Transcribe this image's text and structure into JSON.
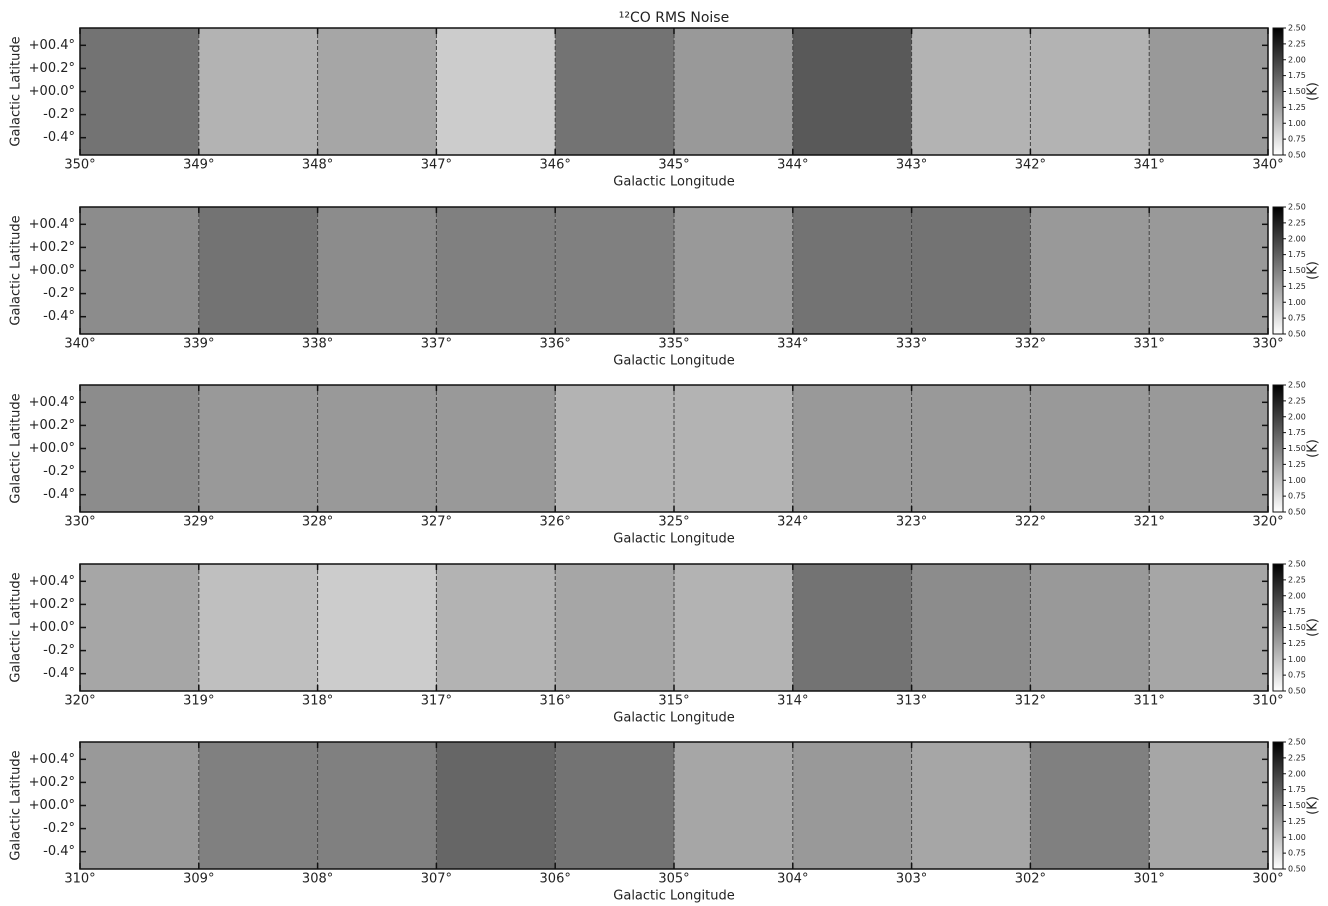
{
  "chart_data": [
    {
      "type": "heatmap",
      "title": "¹²CO RMS Noise",
      "xlabel": "Galactic Longitude",
      "ylabel": "Galactic Latitude",
      "colorbar_label": "(K)",
      "cmap": "gray_r",
      "xlim": [
        350,
        340
      ],
      "ylim": [
        -0.55,
        0.55
      ],
      "clim": [
        0.5,
        2.5
      ],
      "x": [
        349.5,
        348.5,
        347.5,
        346.5,
        345.5,
        344.5,
        343.5,
        342.5,
        341.5,
        340.5
      ],
      "values": [
        1.6,
        1.1,
        1.2,
        0.9,
        1.6,
        1.3,
        1.8,
        1.1,
        1.1,
        1.3
      ],
      "xticks": [
        {
          "value": 350,
          "label": "350°"
        },
        {
          "value": 349,
          "label": "349°"
        },
        {
          "value": 348,
          "label": "348°"
        },
        {
          "value": 347,
          "label": "347°"
        },
        {
          "value": 346,
          "label": "346°"
        },
        {
          "value": 345,
          "label": "345°"
        },
        {
          "value": 344,
          "label": "344°"
        },
        {
          "value": 343,
          "label": "343°"
        },
        {
          "value": 342,
          "label": "342°"
        },
        {
          "value": 341,
          "label": "341°"
        },
        {
          "value": 340,
          "label": "340°"
        }
      ],
      "yticks": [
        {
          "value": 0.4,
          "label": "+00.4°"
        },
        {
          "value": 0.2,
          "label": "+00.2°"
        },
        {
          "value": 0,
          "label": "+00.0°"
        },
        {
          "value": -0.2,
          "label": "-0.2°"
        },
        {
          "value": -0.4,
          "label": "-0.4°"
        }
      ],
      "cticks": [
        {
          "value": 0.5,
          "label": "0.50"
        },
        {
          "value": 0.75,
          "label": "0.75"
        },
        {
          "value": 1,
          "label": "1.00"
        },
        {
          "value": 1.25,
          "label": "1.25"
        },
        {
          "value": 1.5,
          "label": "1.50"
        },
        {
          "value": 1.75,
          "label": "1.75"
        },
        {
          "value": 2,
          "label": "2.00"
        },
        {
          "value": 2.25,
          "label": "2.25"
        },
        {
          "value": 2.5,
          "label": "2.50"
        }
      ]
    },
    {
      "type": "heatmap",
      "xlabel": "Galactic Longitude",
      "ylabel": "Galactic Latitude",
      "colorbar_label": "(K)",
      "cmap": "gray_r",
      "xlim": [
        340,
        330
      ],
      "ylim": [
        -0.55,
        0.55
      ],
      "clim": [
        0.5,
        2.5
      ],
      "x": [
        339.5,
        338.5,
        337.5,
        336.5,
        335.5,
        334.5,
        333.5,
        332.5,
        331.5,
        330.5
      ],
      "values": [
        1.4,
        1.6,
        1.4,
        1.5,
        1.5,
        1.3,
        1.6,
        1.6,
        1.3,
        1.3
      ],
      "xticks": [
        {
          "value": 340,
          "label": "340°"
        },
        {
          "value": 339,
          "label": "339°"
        },
        {
          "value": 338,
          "label": "338°"
        },
        {
          "value": 337,
          "label": "337°"
        },
        {
          "value": 336,
          "label": "336°"
        },
        {
          "value": 335,
          "label": "335°"
        },
        {
          "value": 334,
          "label": "334°"
        },
        {
          "value": 333,
          "label": "333°"
        },
        {
          "value": 332,
          "label": "332°"
        },
        {
          "value": 331,
          "label": "331°"
        },
        {
          "value": 330,
          "label": "330°"
        }
      ],
      "yticks": [
        {
          "value": 0.4,
          "label": "+00.4°"
        },
        {
          "value": 0.2,
          "label": "+00.2°"
        },
        {
          "value": 0,
          "label": "+00.0°"
        },
        {
          "value": -0.2,
          "label": "-0.2°"
        },
        {
          "value": -0.4,
          "label": "-0.4°"
        }
      ],
      "cticks": [
        {
          "value": 0.5,
          "label": "0.50"
        },
        {
          "value": 0.75,
          "label": "0.75"
        },
        {
          "value": 1,
          "label": "1.00"
        },
        {
          "value": 1.25,
          "label": "1.25"
        },
        {
          "value": 1.5,
          "label": "1.50"
        },
        {
          "value": 1.75,
          "label": "1.75"
        },
        {
          "value": 2,
          "label": "2.00"
        },
        {
          "value": 2.25,
          "label": "2.25"
        },
        {
          "value": 2.5,
          "label": "2.50"
        }
      ]
    },
    {
      "type": "heatmap",
      "xlabel": "Galactic Longitude",
      "ylabel": "Galactic Latitude",
      "colorbar_label": "(K)",
      "cmap": "gray_r",
      "xlim": [
        330,
        320
      ],
      "ylim": [
        -0.55,
        0.55
      ],
      "clim": [
        0.5,
        2.5
      ],
      "x": [
        329.5,
        328.5,
        327.5,
        326.5,
        325.5,
        324.5,
        323.5,
        322.5,
        321.5,
        320.5
      ],
      "values": [
        1.4,
        1.3,
        1.3,
        1.3,
        1.1,
        1.1,
        1.3,
        1.3,
        1.3,
        1.3
      ],
      "xticks": [
        {
          "value": 330,
          "label": "330°"
        },
        {
          "value": 329,
          "label": "329°"
        },
        {
          "value": 328,
          "label": "328°"
        },
        {
          "value": 327,
          "label": "327°"
        },
        {
          "value": 326,
          "label": "326°"
        },
        {
          "value": 325,
          "label": "325°"
        },
        {
          "value": 324,
          "label": "324°"
        },
        {
          "value": 323,
          "label": "323°"
        },
        {
          "value": 322,
          "label": "322°"
        },
        {
          "value": 321,
          "label": "321°"
        },
        {
          "value": 320,
          "label": "320°"
        }
      ],
      "yticks": [
        {
          "value": 0.4,
          "label": "+00.4°"
        },
        {
          "value": 0.2,
          "label": "+00.2°"
        },
        {
          "value": 0,
          "label": "+00.0°"
        },
        {
          "value": -0.2,
          "label": "-0.2°"
        },
        {
          "value": -0.4,
          "label": "-0.4°"
        }
      ],
      "cticks": [
        {
          "value": 0.5,
          "label": "0.50"
        },
        {
          "value": 0.75,
          "label": "0.75"
        },
        {
          "value": 1,
          "label": "1.00"
        },
        {
          "value": 1.25,
          "label": "1.25"
        },
        {
          "value": 1.5,
          "label": "1.50"
        },
        {
          "value": 1.75,
          "label": "1.75"
        },
        {
          "value": 2,
          "label": "2.00"
        },
        {
          "value": 2.25,
          "label": "2.25"
        },
        {
          "value": 2.5,
          "label": "2.50"
        }
      ]
    },
    {
      "type": "heatmap",
      "xlabel": "Galactic Longitude",
      "ylabel": "Galactic Latitude",
      "colorbar_label": "(K)",
      "cmap": "gray_r",
      "xlim": [
        320,
        310
      ],
      "ylim": [
        -0.55,
        0.55
      ],
      "clim": [
        0.5,
        2.5
      ],
      "x": [
        319.5,
        318.5,
        317.5,
        316.5,
        315.5,
        314.5,
        313.5,
        312.5,
        311.5,
        310.5
      ],
      "values": [
        1.2,
        1.0,
        0.9,
        1.1,
        1.2,
        1.1,
        1.6,
        1.4,
        1.3,
        1.2
      ],
      "xticks": [
        {
          "value": 320,
          "label": "320°"
        },
        {
          "value": 319,
          "label": "319°"
        },
        {
          "value": 318,
          "label": "318°"
        },
        {
          "value": 317,
          "label": "317°"
        },
        {
          "value": 316,
          "label": "316°"
        },
        {
          "value": 315,
          "label": "315°"
        },
        {
          "value": 314,
          "label": "314°"
        },
        {
          "value": 313,
          "label": "313°"
        },
        {
          "value": 312,
          "label": "312°"
        },
        {
          "value": 311,
          "label": "311°"
        },
        {
          "value": 310,
          "label": "310°"
        }
      ],
      "yticks": [
        {
          "value": 0.4,
          "label": "+00.4°"
        },
        {
          "value": 0.2,
          "label": "+00.2°"
        },
        {
          "value": 0,
          "label": "+00.0°"
        },
        {
          "value": -0.2,
          "label": "-0.2°"
        },
        {
          "value": -0.4,
          "label": "-0.4°"
        }
      ],
      "cticks": [
        {
          "value": 0.5,
          "label": "0.50"
        },
        {
          "value": 0.75,
          "label": "0.75"
        },
        {
          "value": 1,
          "label": "1.00"
        },
        {
          "value": 1.25,
          "label": "1.25"
        },
        {
          "value": 1.5,
          "label": "1.50"
        },
        {
          "value": 1.75,
          "label": "1.75"
        },
        {
          "value": 2,
          "label": "2.00"
        },
        {
          "value": 2.25,
          "label": "2.25"
        },
        {
          "value": 2.5,
          "label": "2.50"
        }
      ]
    },
    {
      "type": "heatmap",
      "xlabel": "Galactic Longitude",
      "ylabel": "Galactic Latitude",
      "colorbar_label": "(K)",
      "cmap": "gray_r",
      "xlim": [
        310,
        300
      ],
      "ylim": [
        -0.55,
        0.55
      ],
      "clim": [
        0.5,
        2.5
      ],
      "x": [
        309.5,
        308.5,
        307.5,
        306.5,
        305.5,
        304.5,
        303.5,
        302.5,
        301.5,
        300.5
      ],
      "values": [
        1.3,
        1.5,
        1.5,
        1.7,
        1.6,
        1.2,
        1.3,
        1.2,
        1.5,
        1.2
      ],
      "xticks": [
        {
          "value": 310,
          "label": "310°"
        },
        {
          "value": 309,
          "label": "309°"
        },
        {
          "value": 308,
          "label": "308°"
        },
        {
          "value": 307,
          "label": "307°"
        },
        {
          "value": 306,
          "label": "306°"
        },
        {
          "value": 305,
          "label": "305°"
        },
        {
          "value": 304,
          "label": "304°"
        },
        {
          "value": 303,
          "label": "303°"
        },
        {
          "value": 302,
          "label": "302°"
        },
        {
          "value": 301,
          "label": "301°"
        },
        {
          "value": 300,
          "label": "300°"
        }
      ],
      "yticks": [
        {
          "value": 0.4,
          "label": "+00.4°"
        },
        {
          "value": 0.2,
          "label": "+00.2°"
        },
        {
          "value": 0,
          "label": "+00.0°"
        },
        {
          "value": -0.2,
          "label": "-0.2°"
        },
        {
          "value": -0.4,
          "label": "-0.4°"
        }
      ],
      "cticks": [
        {
          "value": 0.5,
          "label": "0.50"
        },
        {
          "value": 0.75,
          "label": "0.75"
        },
        {
          "value": 1,
          "label": "1.00"
        },
        {
          "value": 1.25,
          "label": "1.25"
        },
        {
          "value": 1.5,
          "label": "1.50"
        },
        {
          "value": 1.75,
          "label": "1.75"
        },
        {
          "value": 2,
          "label": "2.00"
        },
        {
          "value": 2.25,
          "label": "2.25"
        },
        {
          "value": 2.5,
          "label": "2.50"
        }
      ]
    }
  ]
}
